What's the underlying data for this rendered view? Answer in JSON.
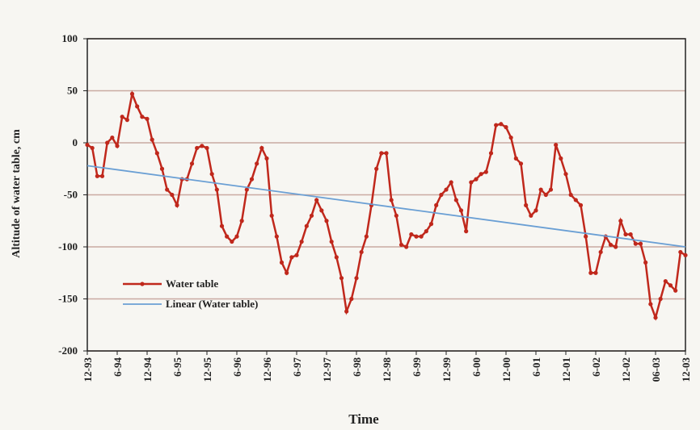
{
  "chart_data": {
    "type": "line",
    "x_label": "Time",
    "y_label": "Altitude of water table, cm",
    "xlim": [
      0,
      120
    ],
    "xticks": [
      {
        "value": 0,
        "label": "12-93"
      },
      {
        "value": 6,
        "label": "6-94"
      },
      {
        "value": 12,
        "label": "12-94"
      },
      {
        "value": 18,
        "label": "6-95"
      },
      {
        "value": 24,
        "label": "12-95"
      },
      {
        "value": 30,
        "label": "6-96"
      },
      {
        "value": 36,
        "label": "12-96"
      },
      {
        "value": 42,
        "label": "6-97"
      },
      {
        "value": 48,
        "label": "12-97"
      },
      {
        "value": 54,
        "label": "6-98"
      },
      {
        "value": 60,
        "label": "12-98"
      },
      {
        "value": 66,
        "label": "6-99"
      },
      {
        "value": 72,
        "label": "12-99"
      },
      {
        "value": 78,
        "label": "6-00"
      },
      {
        "value": 84,
        "label": "12-00"
      },
      {
        "value": 90,
        "label": "6-01"
      },
      {
        "value": 96,
        "label": "12-01"
      },
      {
        "value": 102,
        "label": "6-02"
      },
      {
        "value": 108,
        "label": "12-02"
      },
      {
        "value": 114,
        "label": "06-03"
      },
      {
        "value": 120,
        "label": "12-03"
      }
    ],
    "ylim": [
      -200,
      100
    ],
    "yticks": [
      100,
      50,
      0,
      -50,
      -100,
      -150,
      -200
    ],
    "grid": true,
    "legend": "lower left",
    "series": [
      {
        "name": "Water table",
        "color": "#c0281c",
        "marker": true,
        "x": [
          0,
          1,
          2,
          3,
          4,
          5,
          6,
          7,
          8,
          9,
          10,
          11,
          12,
          13,
          14,
          15,
          16,
          17,
          18,
          19,
          20,
          21,
          22,
          23,
          24,
          25,
          26,
          27,
          28,
          29,
          30,
          31,
          32,
          33,
          34,
          35,
          36,
          37,
          38,
          39,
          40,
          41,
          42,
          43,
          44,
          45,
          46,
          47,
          48,
          49,
          50,
          51,
          52,
          53,
          54,
          55,
          56,
          57,
          58,
          59,
          60,
          61,
          62,
          63,
          64,
          65,
          66,
          67,
          68,
          69,
          70,
          71,
          72,
          73,
          74,
          75,
          76,
          77,
          78,
          79,
          80,
          81,
          82,
          83,
          84,
          85,
          86,
          87,
          88,
          89,
          90,
          91,
          92,
          93,
          94,
          95,
          96,
          97,
          98,
          99,
          100,
          101,
          102,
          103,
          104,
          105,
          106,
          107,
          108,
          109,
          110,
          111,
          112,
          113,
          114,
          115,
          116,
          117,
          118,
          119,
          120
        ],
        "values": [
          -2,
          -5,
          -32,
          -32,
          0,
          5,
          -3,
          25,
          22,
          47,
          35,
          25,
          23,
          3,
          -10,
          -25,
          -45,
          -50,
          -60,
          -35,
          -35,
          -20,
          -5,
          -3,
          -5,
          -30,
          -45,
          -80,
          -90,
          -95,
          -90,
          -75,
          -45,
          -35,
          -20,
          -5,
          -15,
          -70,
          -90,
          -115,
          -125,
          -110,
          -108,
          -95,
          -80,
          -70,
          -55,
          -65,
          -75,
          -95,
          -110,
          -130,
          -162,
          -150,
          -130,
          -105,
          -90,
          -60,
          -25,
          -10,
          -10,
          -55,
          -70,
          -98,
          -100,
          -88,
          -90,
          -90,
          -85,
          -78,
          -60,
          -50,
          -45,
          -38,
          -55,
          -65,
          -85,
          -38,
          -35,
          -30,
          -28,
          -10,
          17,
          18,
          15,
          5,
          -15,
          -20,
          -60,
          -70,
          -65,
          -45,
          -50,
          -45,
          -2,
          -15,
          -30,
          -50,
          -55,
          -60,
          -90,
          -125,
          -125,
          -105,
          -90,
          -98,
          -100,
          -75,
          -88,
          -88,
          -97,
          -97,
          -115,
          -155,
          -168,
          -150,
          -133,
          -137,
          -142,
          -105,
          -108
        ]
      },
      {
        "name": "Linear (Water table)",
        "color": "#6a9fd4",
        "marker": false,
        "x": [
          0,
          120
        ],
        "values": [
          -22,
          -100
        ]
      }
    ]
  }
}
